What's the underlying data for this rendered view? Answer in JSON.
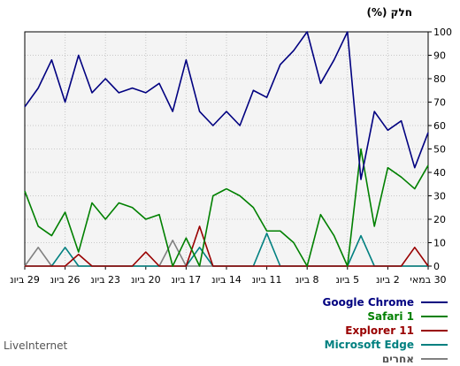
{
  "chart_data": {
    "type": "line",
    "ylabel": "חלק (%)",
    "ylim": [
      0,
      100
    ],
    "yticks": [
      0,
      10,
      20,
      30,
      40,
      50,
      60,
      70,
      80,
      90,
      100
    ],
    "x_tick_labels": [
      "29 ביונ",
      "26 ביונ",
      "23 ביונ",
      "20 ביונ",
      "17 ביונ",
      "14 ביונ",
      "11 ביונ",
      "8 ביונ",
      "5 ביונ",
      "2 ביונ",
      "30 במאי"
    ],
    "x_points": 31,
    "grid": true,
    "legend_position": "bottom-right",
    "series": [
      {
        "name": "Google Chrome",
        "color": "#000080",
        "values": [
          57,
          42,
          62,
          58,
          66,
          37,
          100,
          88,
          78,
          100,
          92,
          86,
          72,
          75,
          60,
          66,
          60,
          66,
          88,
          66,
          78,
          74,
          76,
          74,
          80,
          74,
          90,
          70,
          88,
          76,
          68
        ]
      },
      {
        "name": "Safari 1",
        "color": "#008000",
        "values": [
          43,
          33,
          38,
          42,
          17,
          50,
          0,
          13,
          22,
          0,
          10,
          15,
          15,
          25,
          30,
          33,
          30,
          0,
          12,
          0,
          22,
          20,
          25,
          27,
          20,
          27,
          6,
          23,
          13,
          17,
          32
        ]
      },
      {
        "name": "Explorer 11",
        "color": "#990000",
        "values": [
          0,
          8,
          0,
          0,
          0,
          0,
          0,
          0,
          0,
          0,
          0,
          0,
          0,
          0,
          0,
          0,
          0,
          17,
          0,
          0,
          0,
          6,
          0,
          0,
          0,
          0,
          5,
          0,
          0,
          0,
          0
        ]
      },
      {
        "name": "Microsoft Edge",
        "color": "#008080",
        "values": [
          0,
          0,
          0,
          0,
          0,
          13,
          0,
          0,
          0,
          0,
          0,
          0,
          14,
          0,
          0,
          0,
          0,
          8,
          0,
          0,
          0,
          0,
          0,
          0,
          0,
          0,
          0,
          8,
          0,
          0,
          0
        ]
      },
      {
        "name": "אחרים",
        "color": "#808080",
        "values": [
          0,
          0,
          0,
          0,
          0,
          0,
          0,
          0,
          0,
          0,
          0,
          0,
          0,
          0,
          0,
          0,
          0,
          0,
          0,
          11,
          0,
          0,
          0,
          0,
          0,
          0,
          0,
          0,
          0,
          8,
          0
        ]
      }
    ]
  },
  "footer": {
    "source": "LiveInternet"
  }
}
